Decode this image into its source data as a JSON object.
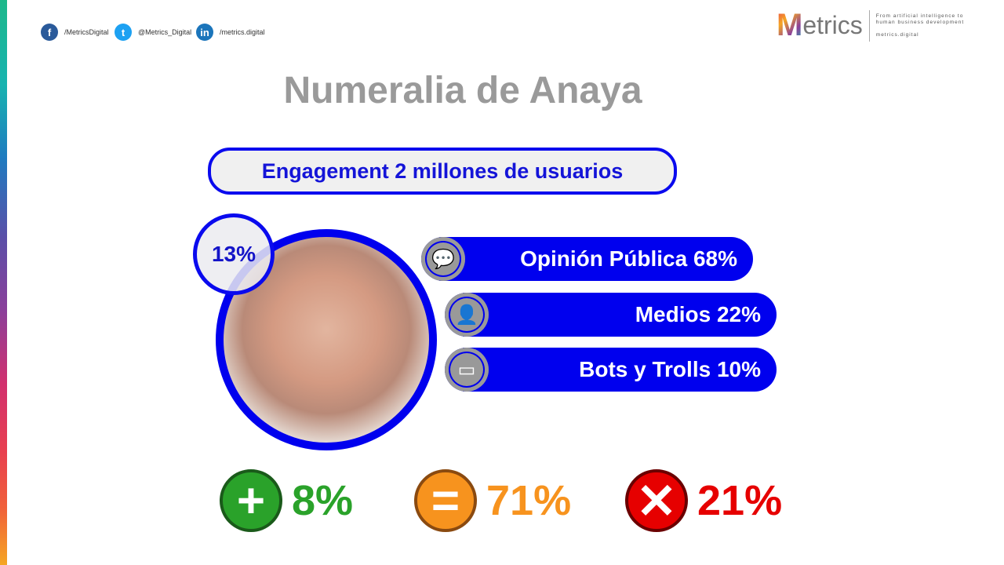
{
  "social": {
    "facebook": "/MetricsDigital",
    "twitter": "@Metrics_Digital",
    "linkedin": "/metrics.digital"
  },
  "logo": {
    "name": "Metrics",
    "tagline": "From artificial intelligence to human business development",
    "url": "metrics.digital"
  },
  "title": "Numeralia de Anaya",
  "engagement": "Engagement 2 millones de usuarios",
  "photo_badge": "13%",
  "breakdown": [
    {
      "label": "Opinión Pública 68%",
      "icon": "speech-person-icon"
    },
    {
      "label": "Medios 22%",
      "icon": "person-star-icon"
    },
    {
      "label": "Bots y Trolls 10%",
      "icon": "robot-icon"
    }
  ],
  "sentiment": [
    {
      "value": "8%",
      "icon": "plus-icon",
      "color": "#2aa22a"
    },
    {
      "value": "71%",
      "icon": "equals-icon",
      "color": "#f7931e"
    },
    {
      "value": "21%",
      "icon": "x-icon",
      "color": "#e60000"
    }
  ],
  "colors": {
    "accent": "#0000ee",
    "title": "#9a9a9a"
  }
}
